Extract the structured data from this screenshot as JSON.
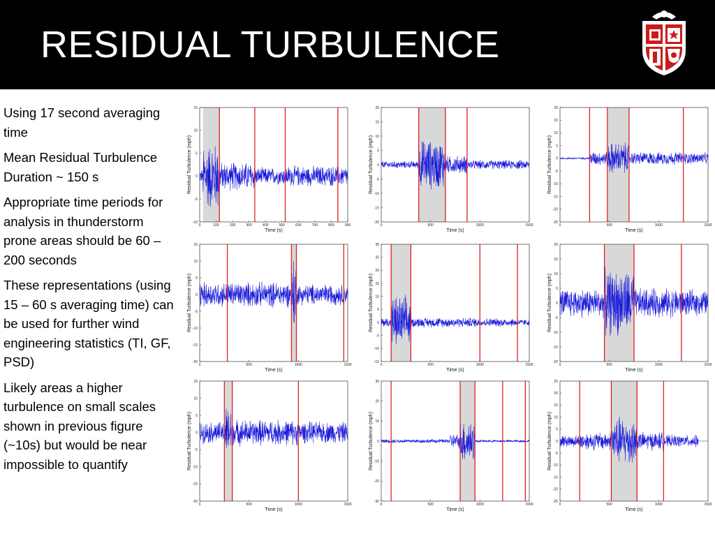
{
  "slide": {
    "title": "RESIDUAL TURBULENCE",
    "bullets": [
      "Using 17 second averaging time",
      "Mean Residual Turbulence Duration ~ 150 s",
      "Appropriate time periods for analysis in thunderstorm prone areas should be 60 – 200 seconds",
      "These representations (using 15 – 60 s averaging time) can be used for further wind engineering statistics (TI, GF, PSD)",
      "Likely areas a higher turbulence on small scales shown in previous figure (~10s) but would be near impossible to quantify"
    ]
  },
  "colors": {
    "header": "#000000",
    "signal": "#1a1adb",
    "event_line": "#e02020",
    "shade": "#d8d8d8",
    "logo_red": "#cc1a1a"
  },
  "logo": {
    "icon": "university-crest-icon"
  },
  "chart_data": [
    {
      "type": "line",
      "xlabel": "Time (s)",
      "ylabel": "Residual Turbulence (mph)",
      "xlim": [
        0,
        900
      ],
      "ylim": [
        -10,
        15
      ],
      "xticks": [
        "0",
        "100",
        "200",
        "300",
        "400",
        "500",
        "600",
        "700",
        "800",
        "900"
      ],
      "yticks": [
        "15",
        "10",
        "5",
        "0",
        "-5",
        "-10"
      ],
      "shade": [
        20,
        120
      ],
      "lines": [
        120,
        335,
        520,
        840
      ],
      "zero": 0,
      "segments": [
        [
          0,
          20,
          1.2
        ],
        [
          20,
          120,
          6
        ],
        [
          120,
          335,
          2.5
        ],
        [
          335,
          520,
          1.5
        ],
        [
          520,
          900,
          1.8
        ]
      ]
    },
    {
      "type": "line",
      "xlabel": "Time (s)",
      "ylabel": "Residual Turbulence (mph)",
      "xlim": [
        0,
        1500
      ],
      "ylim": [
        -20,
        20
      ],
      "xticks": [
        "0",
        "500",
        "1000",
        "1500"
      ],
      "yticks": [
        "20",
        "15",
        "10",
        "5",
        "0",
        "-5",
        "-10",
        "-15",
        "-20"
      ],
      "shade": [
        380,
        650
      ],
      "lines": [
        380,
        650,
        870
      ],
      "zero": 0,
      "segments": [
        [
          0,
          380,
          1
        ],
        [
          380,
          650,
          7
        ],
        [
          650,
          870,
          2.5
        ],
        [
          870,
          1500,
          1.3
        ]
      ]
    },
    {
      "type": "line",
      "xlabel": "Time (s)",
      "ylabel": "Residual Turbulence (mph)",
      "xlim": [
        0,
        1500
      ],
      "ylim": [
        -25,
        20
      ],
      "xticks": [
        "0",
        "500",
        "1000",
        "1500"
      ],
      "yticks": [
        "20",
        "15",
        "10",
        "5",
        "0",
        "-5",
        "-10",
        "-15",
        "-20",
        "-25"
      ],
      "shade": [
        480,
        700
      ],
      "lines": [
        300,
        480,
        700,
        1250
      ],
      "zero": 0,
      "segments": [
        [
          0,
          300,
          0.3
        ],
        [
          300,
          480,
          2.2
        ],
        [
          480,
          700,
          5
        ],
        [
          700,
          1250,
          2
        ],
        [
          1250,
          1500,
          1.8
        ]
      ]
    },
    {
      "type": "line",
      "xlabel": "Time (s)",
      "ylabel": "Residual Turbulence (mph)",
      "xlim": [
        0,
        1500
      ],
      "ylim": [
        -20,
        15
      ],
      "xticks": [
        "0",
        "500",
        "1000",
        "1500"
      ],
      "yticks": [
        "15",
        "10",
        "5",
        "0",
        "-5",
        "-10",
        "-15",
        "-20"
      ],
      "shade": [
        930,
        980
      ],
      "lines": [
        280,
        930,
        980,
        1460
      ],
      "zero": 0,
      "segments": [
        [
          0,
          280,
          3
        ],
        [
          280,
          930,
          3
        ],
        [
          930,
          980,
          9
        ],
        [
          980,
          1460,
          2.5
        ],
        [
          1460,
          1500,
          2
        ]
      ]
    },
    {
      "type": "line",
      "xlabel": "Time (s)",
      "ylabel": "Residual Turbulence (mph)",
      "xlim": [
        0,
        1500
      ],
      "ylim": [
        -15,
        30
      ],
      "xticks": [
        "0",
        "500",
        "1000",
        "1500"
      ],
      "yticks": [
        "30",
        "25",
        "20",
        "15",
        "10",
        "5",
        "0",
        "-5",
        "-10",
        "-15"
      ],
      "shade": [
        100,
        300
      ],
      "lines": [
        100,
        300,
        1000,
        1380
      ],
      "zero": 0,
      "segments": [
        [
          0,
          100,
          1.5
        ],
        [
          100,
          300,
          8
        ],
        [
          300,
          1000,
          1.5
        ],
        [
          1000,
          1380,
          1.3
        ],
        [
          1380,
          1500,
          1
        ]
      ]
    },
    {
      "type": "line",
      "xlabel": "Time (s)",
      "ylabel": "Residual Turbulence (mph)",
      "xlim": [
        0,
        1500
      ],
      "ylim": [
        -20,
        20
      ],
      "xticks": [
        "0",
        "500",
        "1000",
        "1500"
      ],
      "yticks": [
        "20",
        "15",
        "10",
        "5",
        "0",
        "-5",
        "-10",
        "-15",
        "-20"
      ],
      "shade": [
        450,
        750
      ],
      "lines": [
        450,
        750,
        1230
      ],
      "zero": 0,
      "segments": [
        [
          0,
          450,
          4
        ],
        [
          450,
          750,
          9
        ],
        [
          750,
          1230,
          4
        ],
        [
          1230,
          1500,
          3.5
        ]
      ]
    },
    {
      "type": "line",
      "xlabel": "Time (s)",
      "ylabel": "Residual Turbulence (mph)",
      "xlim": [
        0,
        1500
      ],
      "ylim": [
        -20,
        15
      ],
      "xticks": [
        "0",
        "500",
        "1000",
        "1500"
      ],
      "yticks": [
        "15",
        "10",
        "5",
        "0",
        "-5",
        "-10",
        "-15",
        "-20"
      ],
      "shade": [
        250,
        330
      ],
      "lines": [
        250,
        330,
        1000
      ],
      "zero": 0,
      "segments": [
        [
          0,
          250,
          2.5
        ],
        [
          250,
          330,
          6
        ],
        [
          330,
          1000,
          3
        ],
        [
          1000,
          1500,
          2.5
        ]
      ]
    },
    {
      "type": "line",
      "xlabel": "Time (s)",
      "ylabel": "Residual Turbulence (mph)",
      "xlim": [
        0,
        1500
      ],
      "ylim": [
        -30,
        30
      ],
      "xticks": [
        "0",
        "500",
        "1000",
        "1500"
      ],
      "yticks": [
        "30",
        "20",
        "10",
        "0",
        "-10",
        "-20",
        "-30"
      ],
      "shade": [
        800,
        950
      ],
      "lines": [
        100,
        800,
        950,
        1230,
        1460
      ],
      "zero": 0,
      "segments": [
        [
          0,
          700,
          0.8
        ],
        [
          700,
          800,
          3
        ],
        [
          800,
          950,
          9
        ],
        [
          950,
          1500,
          0.5
        ]
      ]
    },
    {
      "type": "line",
      "xlabel": "Time (s)",
      "ylabel": "Residual Turbulence (mph)",
      "xlim": [
        0,
        1500
      ],
      "ylim": [
        -25,
        25
      ],
      "xticks": [
        "0",
        "500",
        "1000",
        "1500"
      ],
      "yticks": [
        "25",
        "20",
        "15",
        "10",
        "5",
        "0",
        "-5",
        "-10",
        "-15",
        "-20",
        "-25"
      ],
      "shade": [
        520,
        780
      ],
      "lines": [
        200,
        520,
        780,
        1050
      ],
      "zero": 0,
      "segments": [
        [
          0,
          200,
          2
        ],
        [
          200,
          520,
          3
        ],
        [
          520,
          780,
          8
        ],
        [
          780,
          1050,
          3
        ],
        [
          1050,
          1400,
          2
        ]
      ]
    }
  ]
}
